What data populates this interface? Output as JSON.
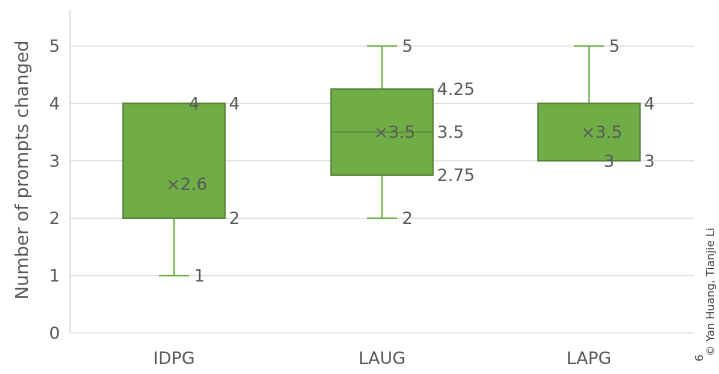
{
  "chart_data": {
    "type": "box",
    "ylabel": "Number of prompts changed",
    "ylim": [
      0,
      5
    ],
    "yticks": [
      0,
      1,
      2,
      3,
      4,
      5
    ],
    "grid": true,
    "box_color": "#70AD47",
    "categories": [
      "IDPG",
      "LAUG",
      "LAPG"
    ],
    "boxes": [
      {
        "category": "IDPG",
        "min": 1,
        "q1": 2,
        "median": 4,
        "q3": 4,
        "max": 4,
        "mean": 2.6,
        "labels": [
          {
            "text": "4",
            "value": 4,
            "pos": "inside"
          },
          {
            "text": "4",
            "value": 4,
            "pos": "right"
          },
          {
            "text": "2",
            "value": 2,
            "pos": "right"
          },
          {
            "text": "1",
            "value": 1,
            "pos": "whisker"
          },
          {
            "text": "×2.6",
            "value": 2.6,
            "pos": "mean"
          }
        ]
      },
      {
        "category": "LAUG",
        "min": 2,
        "q1": 2.75,
        "median": 3.5,
        "q3": 4.25,
        "max": 5,
        "mean": 3.5,
        "labels": [
          {
            "text": "5",
            "value": 5,
            "pos": "whisker"
          },
          {
            "text": "4.25",
            "value": 4.25,
            "pos": "right"
          },
          {
            "text": "3.5",
            "value": 3.5,
            "pos": "right"
          },
          {
            "text": "2.75",
            "value": 2.75,
            "pos": "right"
          },
          {
            "text": "2",
            "value": 2,
            "pos": "whisker"
          },
          {
            "text": "×3.5",
            "value": 3.5,
            "pos": "mean"
          }
        ]
      },
      {
        "category": "LAPG",
        "min": 3,
        "q1": 3,
        "median": 3,
        "q3": 4,
        "max": 5,
        "mean": 3.5,
        "labels": [
          {
            "text": "5",
            "value": 5,
            "pos": "whisker"
          },
          {
            "text": "4",
            "value": 4,
            "pos": "right"
          },
          {
            "text": "3",
            "value": 3,
            "pos": "inside"
          },
          {
            "text": "3",
            "value": 3,
            "pos": "right"
          },
          {
            "text": "×3.5",
            "value": 3.5,
            "pos": "mean"
          }
        ]
      }
    ]
  },
  "credit": {
    "text": "© Yan Huang, Tianjie Li",
    "page_marker": "6"
  }
}
